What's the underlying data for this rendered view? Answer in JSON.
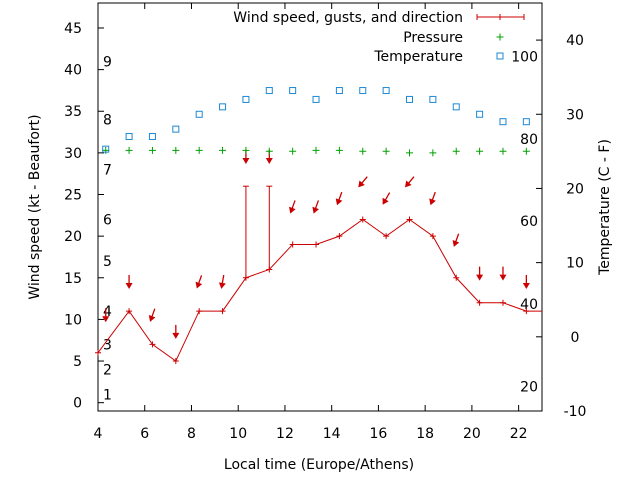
{
  "chart_data": {
    "type": "line",
    "legend_placement": "top-right",
    "grid": false,
    "xlabel": "Local time (Europe/Athens)",
    "ylabel_left": "Wind speed (kt - Beaufort)",
    "ylabel_right": "Temperature (C - F)",
    "x_ticks": [
      "4",
      "6",
      "8",
      "10",
      "12",
      "14",
      "16",
      "18",
      "20",
      "22"
    ],
    "x_range": [
      4,
      23
    ],
    "y_left_ticks": [
      "0",
      "5",
      "10",
      "15",
      "20",
      "25",
      "30",
      "35",
      "40",
      "45"
    ],
    "y_left_range": [
      -1,
      48
    ],
    "y_right_ticks": [
      "-10",
      "0",
      "10",
      "20",
      "30",
      "40"
    ],
    "y_right_range": [
      -10,
      45
    ],
    "beaufort_labels": [
      {
        "text": "1",
        "kt": 1
      },
      {
        "text": "2",
        "kt": 4
      },
      {
        "text": "3",
        "kt": 7
      },
      {
        "text": "4",
        "kt": 11
      },
      {
        "text": "5",
        "kt": 17
      },
      {
        "text": "6",
        "kt": 22
      },
      {
        "text": "7",
        "kt": 28
      },
      {
        "text": "8",
        "kt": 34
      },
      {
        "text": "9",
        "kt": 41
      }
    ],
    "fahrenheit_labels": [
      {
        "text": "20",
        "celsius": -6.7
      },
      {
        "text": "40",
        "celsius": 4.4
      },
      {
        "text": "60",
        "celsius": 15.6
      },
      {
        "text": "80",
        "celsius": 26.7
      },
      {
        "text": "100",
        "celsius": 37.8
      }
    ],
    "series": [
      {
        "name": "Wind speed, gusts, and direction",
        "color": "#cc0000",
        "x": [
          4,
          5.33,
          6.33,
          7.33,
          8.33,
          9.33,
          10.33,
          11.33,
          12.33,
          13.33,
          14.33,
          15.33,
          16.33,
          17.33,
          18.33,
          19.33,
          20.33,
          21.33,
          22.33,
          23
        ],
        "values": [
          6,
          11,
          7,
          5,
          11,
          11,
          15,
          16,
          19,
          19,
          20,
          22,
          20,
          22,
          20,
          15,
          12,
          12,
          11,
          11
        ],
        "gusts": [
          {
            "x": 10.33,
            "base": 15,
            "top": 26
          },
          {
            "x": 11.33,
            "base": 16,
            "top": 26
          }
        ],
        "direction_arrows": [
          {
            "x": 4.33,
            "y": 10.5,
            "deg": 180
          },
          {
            "x": 5.33,
            "y": 14.5,
            "deg": 180
          },
          {
            "x": 6.33,
            "y": 10.5,
            "deg": 200
          },
          {
            "x": 7.33,
            "y": 8.5,
            "deg": 180
          },
          {
            "x": 8.33,
            "y": 14.5,
            "deg": 200
          },
          {
            "x": 9.33,
            "y": 14.5,
            "deg": 190
          },
          {
            "x": 10.33,
            "y": 29.5,
            "deg": 180
          },
          {
            "x": 11.33,
            "y": 29.5,
            "deg": 180
          },
          {
            "x": 12.33,
            "y": 23.5,
            "deg": 200
          },
          {
            "x": 13.33,
            "y": 23.5,
            "deg": 200
          },
          {
            "x": 14.33,
            "y": 24.5,
            "deg": 200
          },
          {
            "x": 15.33,
            "y": 26.5,
            "deg": 220
          },
          {
            "x": 16.33,
            "y": 24.5,
            "deg": 210
          },
          {
            "x": 17.33,
            "y": 26.5,
            "deg": 220
          },
          {
            "x": 18.33,
            "y": 24.5,
            "deg": 200
          },
          {
            "x": 19.33,
            "y": 19.5,
            "deg": 200
          },
          {
            "x": 20.33,
            "y": 15.5,
            "deg": 180
          },
          {
            "x": 21.33,
            "y": 15.5,
            "deg": 180
          },
          {
            "x": 22.33,
            "y": 14.5,
            "deg": 180
          }
        ]
      },
      {
        "name": "Pressure",
        "color": "#00a000",
        "x": [
          4.33,
          5.33,
          6.33,
          7.33,
          8.33,
          9.33,
          10.33,
          11.33,
          12.33,
          13.33,
          14.33,
          15.33,
          16.33,
          17.33,
          18.33,
          19.33,
          20.33,
          21.33,
          22.33
        ],
        "values": [
          30.3,
          30.3,
          30.3,
          30.3,
          30.3,
          30.3,
          30.3,
          30.2,
          30.2,
          30.3,
          30.3,
          30.2,
          30.2,
          30.0,
          30.0,
          30.2,
          30.2,
          30.2,
          30.2
        ]
      },
      {
        "name": "Temperature",
        "color": "#1e88d4",
        "axis": "right",
        "x": [
          4.33,
          5.33,
          6.33,
          7.33,
          8.33,
          9.33,
          10.33,
          11.33,
          12.33,
          13.33,
          14.33,
          15.33,
          16.33,
          17.33,
          18.33,
          19.33,
          20.33,
          21.33,
          22.33
        ],
        "values": [
          25.3,
          27.0,
          27.0,
          28.0,
          30.0,
          31.0,
          32.0,
          33.2,
          33.2,
          32.0,
          33.2,
          33.2,
          33.2,
          32.0,
          32.0,
          31.0,
          30.0,
          29.0,
          29.0
        ]
      }
    ]
  }
}
